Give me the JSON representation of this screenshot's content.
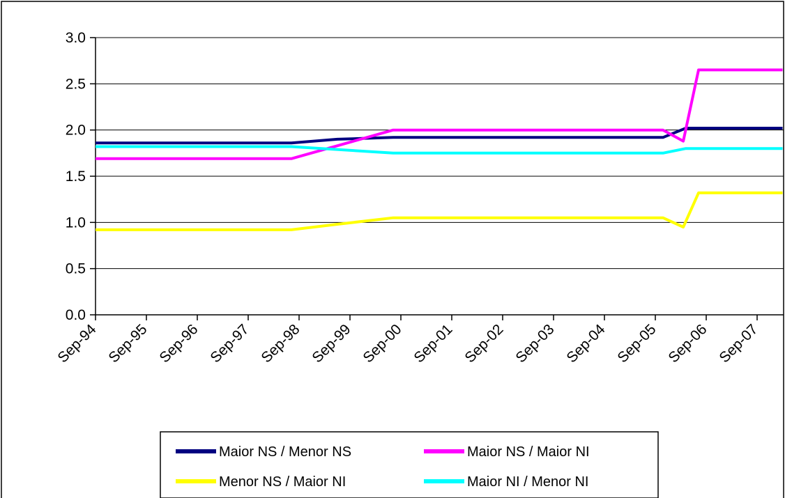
{
  "chart_data": {
    "type": "line",
    "title": "",
    "xlabel": "",
    "ylabel": "",
    "x_tick_labels": [
      "Sep-94",
      "Sep-95",
      "Sep-96",
      "Sep-97",
      "Sep-98",
      "Sep-99",
      "Sep-00",
      "Sep-01",
      "Sep-02",
      "Sep-03",
      "Sep-04",
      "Sep-05",
      "Sep-06",
      "Sep-07"
    ],
    "y_tick_labels": [
      "0.0",
      "0.5",
      "1.0",
      "1.5",
      "2.0",
      "2.5",
      "3.0"
    ],
    "ylim": [
      0,
      3
    ],
    "xlim": [
      1994.75,
      2008.25
    ],
    "grid": "horizontal",
    "legend_position": "bottom",
    "series": [
      {
        "name": "Maior NS / Menor NS",
        "color": "#000080",
        "points": [
          [
            1994.75,
            1.86
          ],
          [
            1998.6,
            1.86
          ],
          [
            1999.5,
            1.9
          ],
          [
            2000.6,
            1.92
          ],
          [
            2005.9,
            1.92
          ],
          [
            2006.35,
            2.02
          ],
          [
            2008.25,
            2.02
          ]
        ]
      },
      {
        "name": "Maior NS / Maior NI",
        "color": "#ff00ff",
        "points": [
          [
            1994.75,
            1.69
          ],
          [
            1998.6,
            1.69
          ],
          [
            2000.6,
            2.0
          ],
          [
            2005.9,
            2.0
          ],
          [
            2006.3,
            1.88
          ],
          [
            2006.6,
            2.65
          ],
          [
            2008.25,
            2.65
          ]
        ]
      },
      {
        "name": "Menor NS / Maior NI",
        "color": "#ffff00",
        "points": [
          [
            1994.75,
            0.92
          ],
          [
            1998.6,
            0.92
          ],
          [
            1999.5,
            0.98
          ],
          [
            2000.6,
            1.05
          ],
          [
            2005.9,
            1.05
          ],
          [
            2006.3,
            0.95
          ],
          [
            2006.6,
            1.32
          ],
          [
            2008.25,
            1.32
          ]
        ]
      },
      {
        "name": "Maior NI / Menor NI",
        "color": "#00ffff",
        "points": [
          [
            1994.75,
            1.82
          ],
          [
            1998.6,
            1.82
          ],
          [
            2000.6,
            1.75
          ],
          [
            2005.9,
            1.75
          ],
          [
            2006.35,
            1.8
          ],
          [
            2008.25,
            1.8
          ]
        ]
      }
    ]
  }
}
